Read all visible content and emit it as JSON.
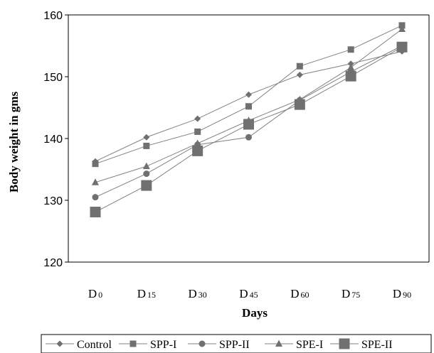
{
  "chart_data": {
    "type": "line",
    "xlabel": "Days",
    "ylabel": "Body weight in gms",
    "categories": [
      "D0",
      "D15",
      "D30",
      "D45",
      "D60",
      "D75",
      "D90"
    ],
    "category_labels": [
      {
        "main": "D",
        "sub": "0"
      },
      {
        "main": "D",
        "sub": "15"
      },
      {
        "main": "D",
        "sub": "30"
      },
      {
        "main": "D",
        "sub": "45"
      },
      {
        "main": "D",
        "sub": "60"
      },
      {
        "main": "D",
        "sub": "75"
      },
      {
        "main": "D",
        "sub": "90"
      }
    ],
    "ylim": [
      120,
      160
    ],
    "yticks": [
      120,
      130,
      140,
      150,
      160
    ],
    "grid": false,
    "legend": "bottom",
    "series": [
      {
        "name": "Control",
        "marker": "diamond",
        "values": [
          136.3,
          140.2,
          143.2,
          147.1,
          150.3,
          152.1,
          154.1
        ]
      },
      {
        "name": "SPP-I",
        "marker": "square",
        "values": [
          135.9,
          138.8,
          141.1,
          145.2,
          151.7,
          154.4,
          158.3
        ]
      },
      {
        "name": "SPP-II",
        "marker": "circle",
        "values": [
          130.5,
          134.3,
          139.0,
          140.2,
          146.2,
          150.8,
          155.0
        ]
      },
      {
        "name": "SPE-I",
        "marker": "triangle",
        "values": [
          132.9,
          135.5,
          139.2,
          142.9,
          146.3,
          151.5,
          157.7
        ]
      },
      {
        "name": "SPE-II",
        "marker": "bigsquare",
        "values": [
          128.1,
          132.4,
          138.0,
          142.3,
          145.5,
          150.1,
          154.8
        ]
      }
    ],
    "colors": {
      "line": "#808080",
      "marker": "#707070",
      "axis": "#000000"
    }
  }
}
